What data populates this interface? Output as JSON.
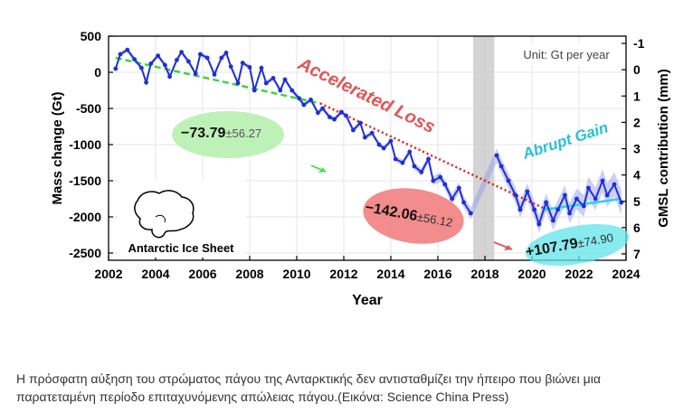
{
  "chart_data": {
    "type": "line",
    "xlabel": "Year",
    "ylabel": "Mass change (Gt)",
    "y2label": "GMSL contribution (mm)",
    "unit_note": "Unit: Gt per year",
    "xlim": [
      2002,
      2024
    ],
    "ylim": [
      -2600,
      500
    ],
    "y2lim": [
      -1,
      7
    ],
    "y2_inverted": true,
    "x_ticks": [
      2002,
      2004,
      2006,
      2008,
      2010,
      2012,
      2014,
      2016,
      2018,
      2020,
      2022,
      2024
    ],
    "y_ticks": [
      500,
      0,
      -500,
      -1000,
      -1500,
      -2000,
      -2500
    ],
    "y2_ticks": [
      -1,
      0,
      1,
      2,
      3,
      4,
      5,
      6,
      7
    ],
    "grid": true,
    "gap_shading": [
      2017.5,
      2018.4
    ],
    "series": [
      {
        "type": "line",
        "color": "#1f2fd8",
        "marker": "dot",
        "x": [
          2002.3,
          2002.5,
          2002.8,
          2003.1,
          2003.4,
          2003.6,
          2003.8,
          2004.1,
          2004.4,
          2004.6,
          2004.9,
          2005.1,
          2005.4,
          2005.7,
          2005.9,
          2006.2,
          2006.5,
          2006.8,
          2007.0,
          2007.2,
          2007.5,
          2007.7,
          2008.0,
          2008.2,
          2008.5,
          2008.7,
          2009.0,
          2009.3,
          2009.5,
          2009.8,
          2010.1,
          2010.3,
          2010.6,
          2010.9,
          2011.1,
          2011.4,
          2011.6,
          2011.9,
          2012.1,
          2012.4,
          2012.7,
          2012.9,
          2013.2,
          2013.5,
          2013.7,
          2014.0,
          2014.2,
          2014.5,
          2014.8,
          2015.0,
          2015.3,
          2015.6,
          2015.8,
          2016.1,
          2016.3,
          2016.6,
          2016.9,
          2017.1,
          2017.4,
          2018.5,
          2018.7,
          2019.0,
          2019.3,
          2019.5,
          2019.8,
          2020.1,
          2020.3,
          2020.6,
          2020.9,
          2021.1,
          2021.4,
          2021.6,
          2021.9,
          2022.2,
          2022.4,
          2022.7,
          2023.0,
          2023.2,
          2023.5,
          2023.8
        ],
        "y": [
          50,
          250,
          310,
          180,
          60,
          -140,
          120,
          230,
          100,
          -60,
          170,
          280,
          150,
          -20,
          250,
          200,
          -30,
          200,
          270,
          80,
          -150,
          130,
          70,
          -250,
          60,
          -150,
          -80,
          -250,
          -100,
          -250,
          -360,
          -450,
          -380,
          -560,
          -500,
          -620,
          -650,
          -550,
          -600,
          -800,
          -700,
          -900,
          -840,
          -1000,
          -1050,
          -950,
          -1200,
          -1250,
          -1100,
          -1300,
          -1380,
          -1200,
          -1500,
          -1450,
          -1550,
          -1750,
          -1600,
          -1800,
          -1950,
          -1150,
          -1300,
          -1500,
          -1700,
          -1900,
          -1650,
          -1900,
          -2100,
          -1800,
          -2050,
          -1900,
          -1700,
          -1950,
          -1750,
          -1850,
          -1600,
          -1750,
          -1500,
          -1700,
          -1550,
          -1800
        ],
        "uncertainty_band": true
      },
      {
        "type": "trend",
        "color": "#3fd43f",
        "style": "dashed",
        "x": [
          2002.3,
          2011.0
        ],
        "y": [
          200,
          -430
        ]
      },
      {
        "type": "trend",
        "color": "#e02020",
        "style": "dotted",
        "x": [
          2011.0,
          2020.5
        ],
        "y": [
          -430,
          -1880
        ]
      },
      {
        "type": "trend",
        "color": "#2ad0e8",
        "style": "solid",
        "x": [
          2020.5,
          2023.8
        ],
        "y": [
          -1900,
          -1750
        ]
      }
    ],
    "annotations": [
      {
        "text": "Accelerated Loss",
        "color": "#e25555"
      },
      {
        "text": "Abrupt Gain",
        "color": "#28c0d8"
      },
      {
        "value": "−73.79",
        "err": "±56.27"
      },
      {
        "value": "−142.06",
        "err": "±56.12"
      },
      {
        "value": "+107.79",
        "err": "±74.90"
      },
      {
        "text": "Antarctic Ice Sheet"
      }
    ]
  },
  "caption": "Η πρόσφατη αύξηση του στρώματος πάγου της Ανταρκτικής δεν αντισταθμίζει την ήπειρο που βιώνει μια παρατεταμένη περίοδο επιταχυνόμενης απώλειας πάγου.(Εικόνα: Science China Press)"
}
